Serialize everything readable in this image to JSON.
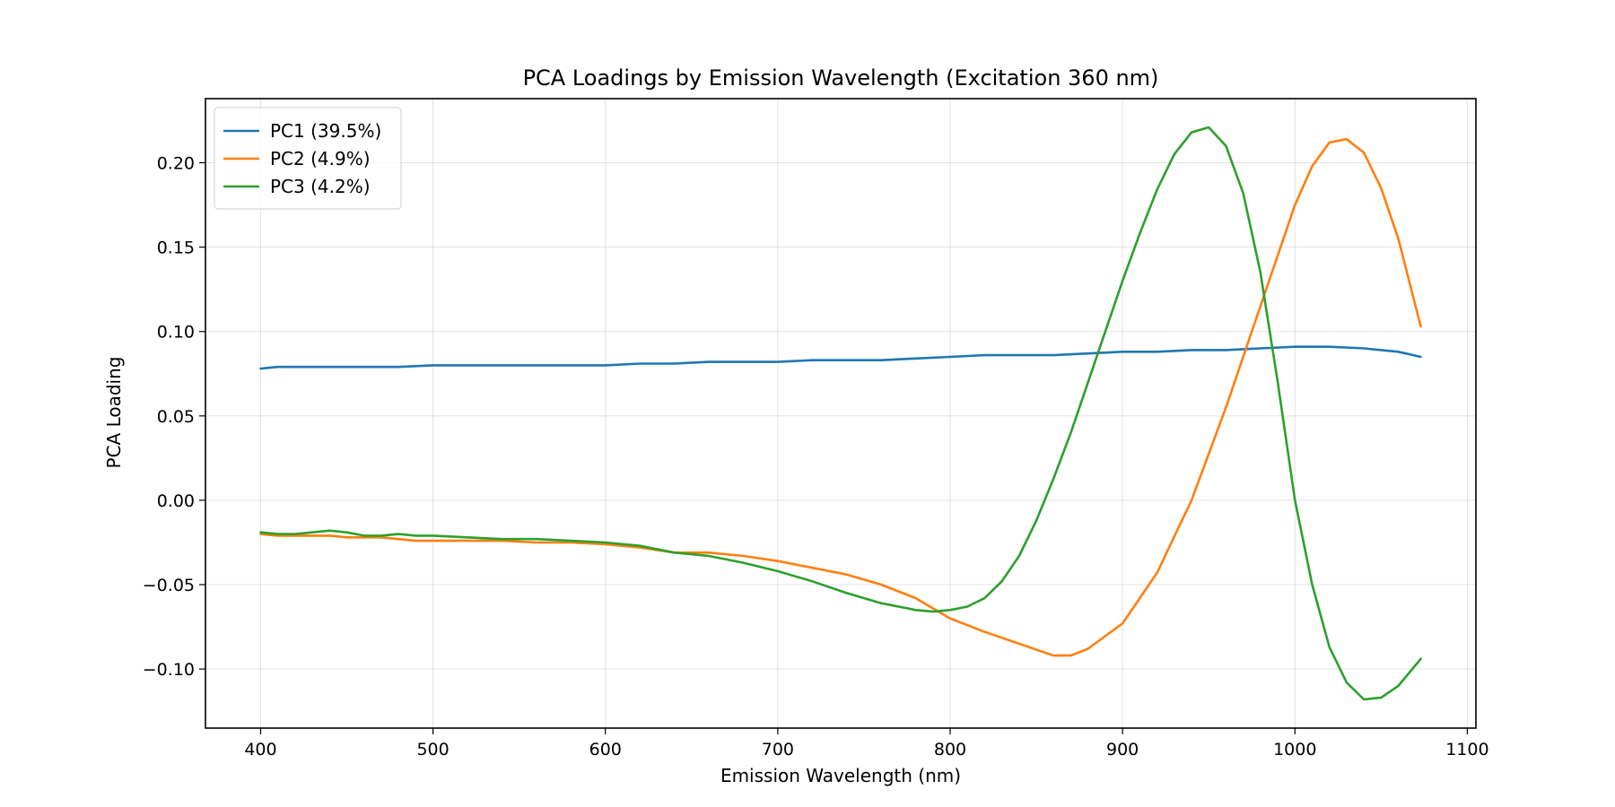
{
  "chart_data": {
    "type": "line",
    "title": "PCA Loadings by Emission Wavelength (Excitation 360 nm)",
    "xlabel": "Emission Wavelength (nm)",
    "ylabel": "PCA Loading",
    "xlim": [
      368,
      1105
    ],
    "ylim": [
      -0.135,
      0.238
    ],
    "xticks": [
      400,
      500,
      600,
      700,
      800,
      900,
      1000,
      1100
    ],
    "yticks": [
      -0.1,
      -0.05,
      0.0,
      0.05,
      0.1,
      0.15,
      0.2
    ],
    "ytick_labels": [
      "−0.10",
      "−0.05",
      "0.00",
      "0.05",
      "0.10",
      "0.15",
      "0.20"
    ],
    "grid": true,
    "legend_position": "top-left",
    "series": [
      {
        "name": "PC1 (39.5%)",
        "color": "#1f77b4",
        "x": [
          400,
          410,
          420,
          430,
          440,
          450,
          460,
          480,
          500,
          520,
          540,
          560,
          580,
          600,
          620,
          640,
          660,
          680,
          700,
          720,
          740,
          760,
          780,
          800,
          820,
          840,
          860,
          880,
          900,
          920,
          940,
          960,
          980,
          1000,
          1020,
          1040,
          1060,
          1073
        ],
        "y": [
          0.078,
          0.079,
          0.079,
          0.079,
          0.079,
          0.079,
          0.079,
          0.079,
          0.08,
          0.08,
          0.08,
          0.08,
          0.08,
          0.08,
          0.081,
          0.081,
          0.082,
          0.082,
          0.082,
          0.083,
          0.083,
          0.083,
          0.084,
          0.085,
          0.086,
          0.086,
          0.086,
          0.087,
          0.088,
          0.088,
          0.089,
          0.089,
          0.09,
          0.091,
          0.091,
          0.09,
          0.088,
          0.085
        ]
      },
      {
        "name": "PC2 (4.9%)",
        "color": "#ff7f0e",
        "x": [
          400,
          410,
          420,
          430,
          440,
          450,
          460,
          470,
          480,
          490,
          500,
          520,
          540,
          560,
          580,
          600,
          620,
          640,
          660,
          680,
          700,
          720,
          740,
          760,
          780,
          800,
          820,
          840,
          860,
          870,
          880,
          900,
          920,
          940,
          960,
          980,
          1000,
          1010,
          1020,
          1030,
          1040,
          1050,
          1060,
          1073
        ],
        "y": [
          -0.02,
          -0.021,
          -0.021,
          -0.021,
          -0.021,
          -0.022,
          -0.022,
          -0.022,
          -0.023,
          -0.024,
          -0.024,
          -0.024,
          -0.024,
          -0.025,
          -0.025,
          -0.026,
          -0.028,
          -0.031,
          -0.031,
          -0.033,
          -0.036,
          -0.04,
          -0.044,
          -0.05,
          -0.058,
          -0.07,
          -0.078,
          -0.085,
          -0.092,
          -0.092,
          -0.088,
          -0.073,
          -0.043,
          0.0,
          0.055,
          0.115,
          0.175,
          0.198,
          0.212,
          0.214,
          0.206,
          0.185,
          0.155,
          0.103
        ]
      },
      {
        "name": "PC3 (4.2%)",
        "color": "#2ca02c",
        "x": [
          400,
          410,
          420,
          430,
          440,
          450,
          460,
          470,
          480,
          490,
          500,
          520,
          540,
          560,
          580,
          600,
          620,
          640,
          660,
          680,
          700,
          720,
          740,
          760,
          780,
          790,
          800,
          810,
          820,
          830,
          840,
          850,
          860,
          870,
          880,
          890,
          900,
          910,
          920,
          930,
          940,
          950,
          960,
          970,
          980,
          990,
          1000,
          1010,
          1020,
          1030,
          1040,
          1050,
          1060,
          1073
        ],
        "y": [
          -0.019,
          -0.02,
          -0.02,
          -0.019,
          -0.018,
          -0.019,
          -0.021,
          -0.021,
          -0.02,
          -0.021,
          -0.021,
          -0.022,
          -0.023,
          -0.023,
          -0.024,
          -0.025,
          -0.027,
          -0.031,
          -0.033,
          -0.037,
          -0.042,
          -0.048,
          -0.055,
          -0.061,
          -0.065,
          -0.066,
          -0.065,
          -0.063,
          -0.058,
          -0.048,
          -0.033,
          -0.012,
          0.013,
          0.04,
          0.07,
          0.1,
          0.13,
          0.158,
          0.184,
          0.205,
          0.218,
          0.221,
          0.21,
          0.182,
          0.135,
          0.07,
          0.0,
          -0.05,
          -0.087,
          -0.108,
          -0.118,
          -0.117,
          -0.11,
          -0.094
        ]
      }
    ]
  }
}
